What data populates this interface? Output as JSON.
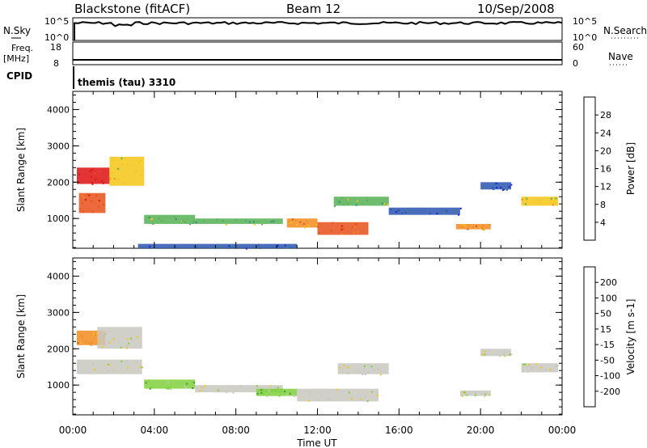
{
  "header": {
    "station": "Blackstone (fitACF)",
    "beam": "Beam 12",
    "date": "10/Sep/2008"
  },
  "panels": {
    "nsky_label": "N.Sky",
    "nsky_ticks": [
      "10^5",
      "10^0"
    ],
    "nsearch_label": "N.Search",
    "nsearch_ticks": [
      "10^5",
      "10^0"
    ],
    "freq_label_1": "Freq.",
    "freq_label_2": "[MHz]",
    "freq_ticks": [
      "18",
      "8"
    ],
    "nave_label": "Nave",
    "nave_ticks": [
      "60",
      "0"
    ],
    "cpid_label": "CPID",
    "cpid_text": "themis (tau) 3310"
  },
  "colors": {
    "power": [
      "#1f1fdc",
      "#2a55b0",
      "#3a8a80",
      "#55b055",
      "#f5c518",
      "#f28c1e",
      "#e8501a",
      "#dd1111"
    ],
    "velocity": [
      "#dd1111",
      "#e8501a",
      "#f28c1e",
      "#f5c518",
      "#c8c8c0",
      "#7fd03a",
      "#3aa030",
      "#3a7a90",
      "#2a3aa0"
    ],
    "line": "#000000"
  },
  "chart_data": [
    {
      "type": "heatmap",
      "title": "Power",
      "ylabel": "Slant Range [km]",
      "xlabel": "Time UT",
      "ylim": [
        180,
        4500
      ],
      "yticks": [
        "1000",
        "2000",
        "3000",
        "4000"
      ],
      "xticks": [
        "00:00",
        "04:00",
        "08:00",
        "12:00",
        "16:00",
        "20:00",
        "00:00"
      ],
      "colorbar_label": "Power [dB]",
      "colorbar_ticks": [
        "4",
        "8",
        "12",
        "16",
        "20",
        "24",
        "28"
      ],
      "regions": [
        {
          "t0": 0.3,
          "t1": 1.6,
          "r0": 1150,
          "r1": 1700,
          "level": 6
        },
        {
          "t0": 0.2,
          "t1": 1.8,
          "r0": 1950,
          "r1": 2400,
          "level": 7
        },
        {
          "t0": 1.8,
          "t1": 3.5,
          "r0": 1900,
          "r1": 2700,
          "level": 4
        },
        {
          "t0": 3.5,
          "t1": 6.0,
          "r0": 850,
          "r1": 1100,
          "level": 3
        },
        {
          "t0": 6.0,
          "t1": 10.3,
          "r0": 850,
          "r1": 1000,
          "level": 3
        },
        {
          "t0": 10.5,
          "t1": 12.0,
          "r0": 750,
          "r1": 1000,
          "level": 5
        },
        {
          "t0": 12.0,
          "t1": 14.5,
          "r0": 550,
          "r1": 900,
          "level": 6
        },
        {
          "t0": 12.8,
          "t1": 15.5,
          "r0": 1350,
          "r1": 1600,
          "level": 3
        },
        {
          "t0": 15.5,
          "t1": 19.0,
          "r0": 1100,
          "r1": 1300,
          "level": 1
        },
        {
          "t0": 18.8,
          "t1": 20.5,
          "r0": 700,
          "r1": 850,
          "level": 5
        },
        {
          "t0": 20.0,
          "t1": 21.5,
          "r0": 1800,
          "r1": 2000,
          "level": 1
        },
        {
          "t0": 22.0,
          "t1": 23.8,
          "r0": 1350,
          "r1": 1600,
          "level": 4
        },
        {
          "t0": 3.2,
          "t1": 11.0,
          "r0": 180,
          "r1": 300,
          "level": 1
        }
      ]
    },
    {
      "type": "heatmap",
      "title": "Velocity",
      "ylabel": "Slant Range [km]",
      "xlabel": "Time UT",
      "ylim": [
        180,
        4500
      ],
      "yticks": [
        "1000",
        "2000",
        "3000",
        "4000"
      ],
      "xticks": [
        "00:00",
        "04:00",
        "08:00",
        "12:00",
        "16:00",
        "20:00",
        "00:00"
      ],
      "colorbar_label": "Velocity [m s-1]",
      "colorbar_ticks": [
        "200",
        "100",
        "50",
        "15",
        "-15",
        "-50",
        "-100",
        "-200"
      ],
      "regions": [
        {
          "t0": 0.2,
          "t1": 1.6,
          "r0": 2100,
          "r1": 2500,
          "level": 2
        },
        {
          "t0": 0.2,
          "t1": 3.4,
          "r0": 1300,
          "r1": 1700,
          "level": 4
        },
        {
          "t0": 1.2,
          "t1": 3.4,
          "r0": 2000,
          "r1": 2600,
          "level": 4
        },
        {
          "t0": 3.5,
          "t1": 6.0,
          "r0": 900,
          "r1": 1150,
          "level": 5
        },
        {
          "t0": 6.0,
          "t1": 10.3,
          "r0": 800,
          "r1": 1000,
          "level": 4
        },
        {
          "t0": 9.0,
          "t1": 11.0,
          "r0": 700,
          "r1": 900,
          "level": 5
        },
        {
          "t0": 11.0,
          "t1": 15.0,
          "r0": 550,
          "r1": 900,
          "level": 4
        },
        {
          "t0": 13.0,
          "t1": 15.5,
          "r0": 1300,
          "r1": 1600,
          "level": 4
        },
        {
          "t0": 19.0,
          "t1": 20.5,
          "r0": 700,
          "r1": 850,
          "level": 4
        },
        {
          "t0": 20.0,
          "t1": 21.5,
          "r0": 1800,
          "r1": 2000,
          "level": 4
        },
        {
          "t0": 22.0,
          "t1": 23.8,
          "r0": 1350,
          "r1": 1600,
          "level": 4
        }
      ]
    }
  ]
}
